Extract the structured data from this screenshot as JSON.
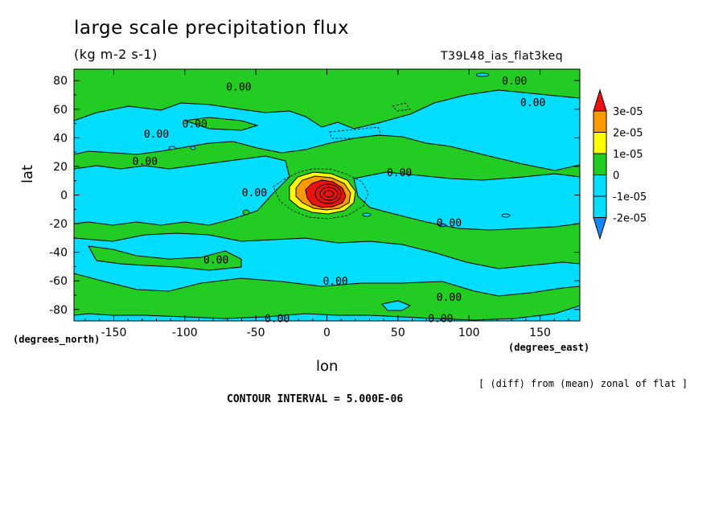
{
  "chart_data": {
    "type": "heatmap",
    "title": "large scale precipitation flux",
    "subtitle": "(kg m-2 s-1)",
    "run_id": "T39L48_ias_flat3keq",
    "xlabel": "lon",
    "ylabel": "lat",
    "x_unit_label": "(degrees_east)",
    "y_unit_label": "(degrees_north)",
    "xlim": [
      -178,
      178
    ],
    "ylim": [
      -88,
      88
    ],
    "x_ticks": [
      -150,
      -100,
      -50,
      0,
      50,
      100,
      150
    ],
    "y_ticks": [
      80,
      60,
      40,
      20,
      0,
      -20,
      -40,
      -60,
      -80
    ],
    "contour_labels": [
      {
        "text": "0.00",
        "lon": -62,
        "lat": 76
      },
      {
        "text": "0.00",
        "lon": 132,
        "lat": 80
      },
      {
        "text": "0.00",
        "lon": 145,
        "lat": 65
      },
      {
        "text": "0.00",
        "lon": -93,
        "lat": 50
      },
      {
        "text": "0.00",
        "lon": -120,
        "lat": 43
      },
      {
        "text": "0.00",
        "lon": -128,
        "lat": 24
      },
      {
        "text": "0.00",
        "lon": 51,
        "lat": 16
      },
      {
        "text": "0.00",
        "lon": -51,
        "lat": 2
      },
      {
        "text": "0.00",
        "lon": 86,
        "lat": -19
      },
      {
        "text": "0.00",
        "lon": -78,
        "lat": -45
      },
      {
        "text": "0.00",
        "lon": 6,
        "lat": -60
      },
      {
        "text": "0.00",
        "lon": 86,
        "lat": -71
      },
      {
        "text": "0.00",
        "lon": -35,
        "lat": -86
      },
      {
        "text": "0.00",
        "lon": 80,
        "lat": -86
      }
    ],
    "legend": {
      "levels": [
        "3e-05",
        "2e-05",
        "1e-05",
        "0",
        "-1e-05",
        "-2e-05"
      ],
      "colors": [
        "#ee1111",
        "#ff9900",
        "#ffff00",
        "#22cc22",
        "#00ddff",
        "#1188ff"
      ]
    },
    "colors": {
      "positive": "#22cc22",
      "negative": "#00ddff",
      "strong_negative": "#1188ff",
      "yellow": "#ffff00",
      "orange": "#ff9900",
      "red": "#ee1111"
    },
    "grid": false
  },
  "note": "[ (diff) from (mean) zonal of flat ]",
  "contour_interval": "CONTOUR INTERVAL = 5.000E-06"
}
